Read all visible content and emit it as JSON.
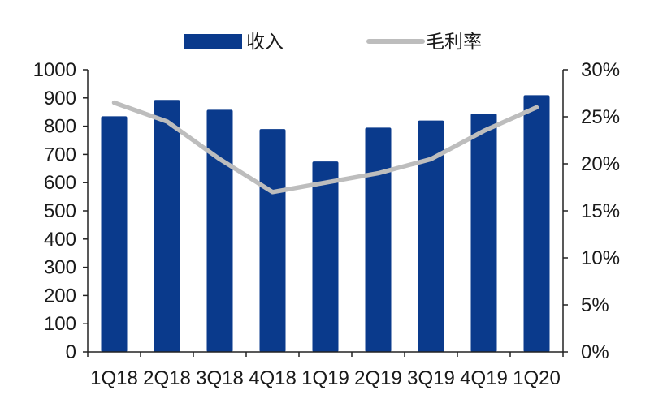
{
  "chart_data": {
    "type": "bar",
    "categories": [
      "1Q18",
      "2Q18",
      "3Q18",
      "4Q18",
      "1Q19",
      "2Q19",
      "3Q19",
      "4Q19",
      "1Q20"
    ],
    "series": [
      {
        "name": "收入",
        "type": "bar",
        "axis": "left",
        "color": "#0a3a8c",
        "values": [
          835,
          893,
          858,
          790,
          675,
          795,
          820,
          845,
          910
        ]
      },
      {
        "name": "毛利率",
        "type": "line",
        "axis": "right",
        "color": "#bdbdbd",
        "values": [
          26.5,
          24.5,
          20.5,
          17.0,
          18.0,
          19.0,
          20.5,
          23.5,
          26.0
        ]
      }
    ],
    "y_left": {
      "min": 0,
      "max": 1000,
      "ticks": [
        "0",
        "100",
        "200",
        "300",
        "400",
        "500",
        "600",
        "700",
        "800",
        "900",
        "1000"
      ]
    },
    "y_right": {
      "min": 0,
      "max": 30,
      "ticks": [
        "0%",
        "5%",
        "10%",
        "15%",
        "20%",
        "25%",
        "30%"
      ]
    },
    "grid": false,
    "legend": {
      "position": "top"
    }
  }
}
